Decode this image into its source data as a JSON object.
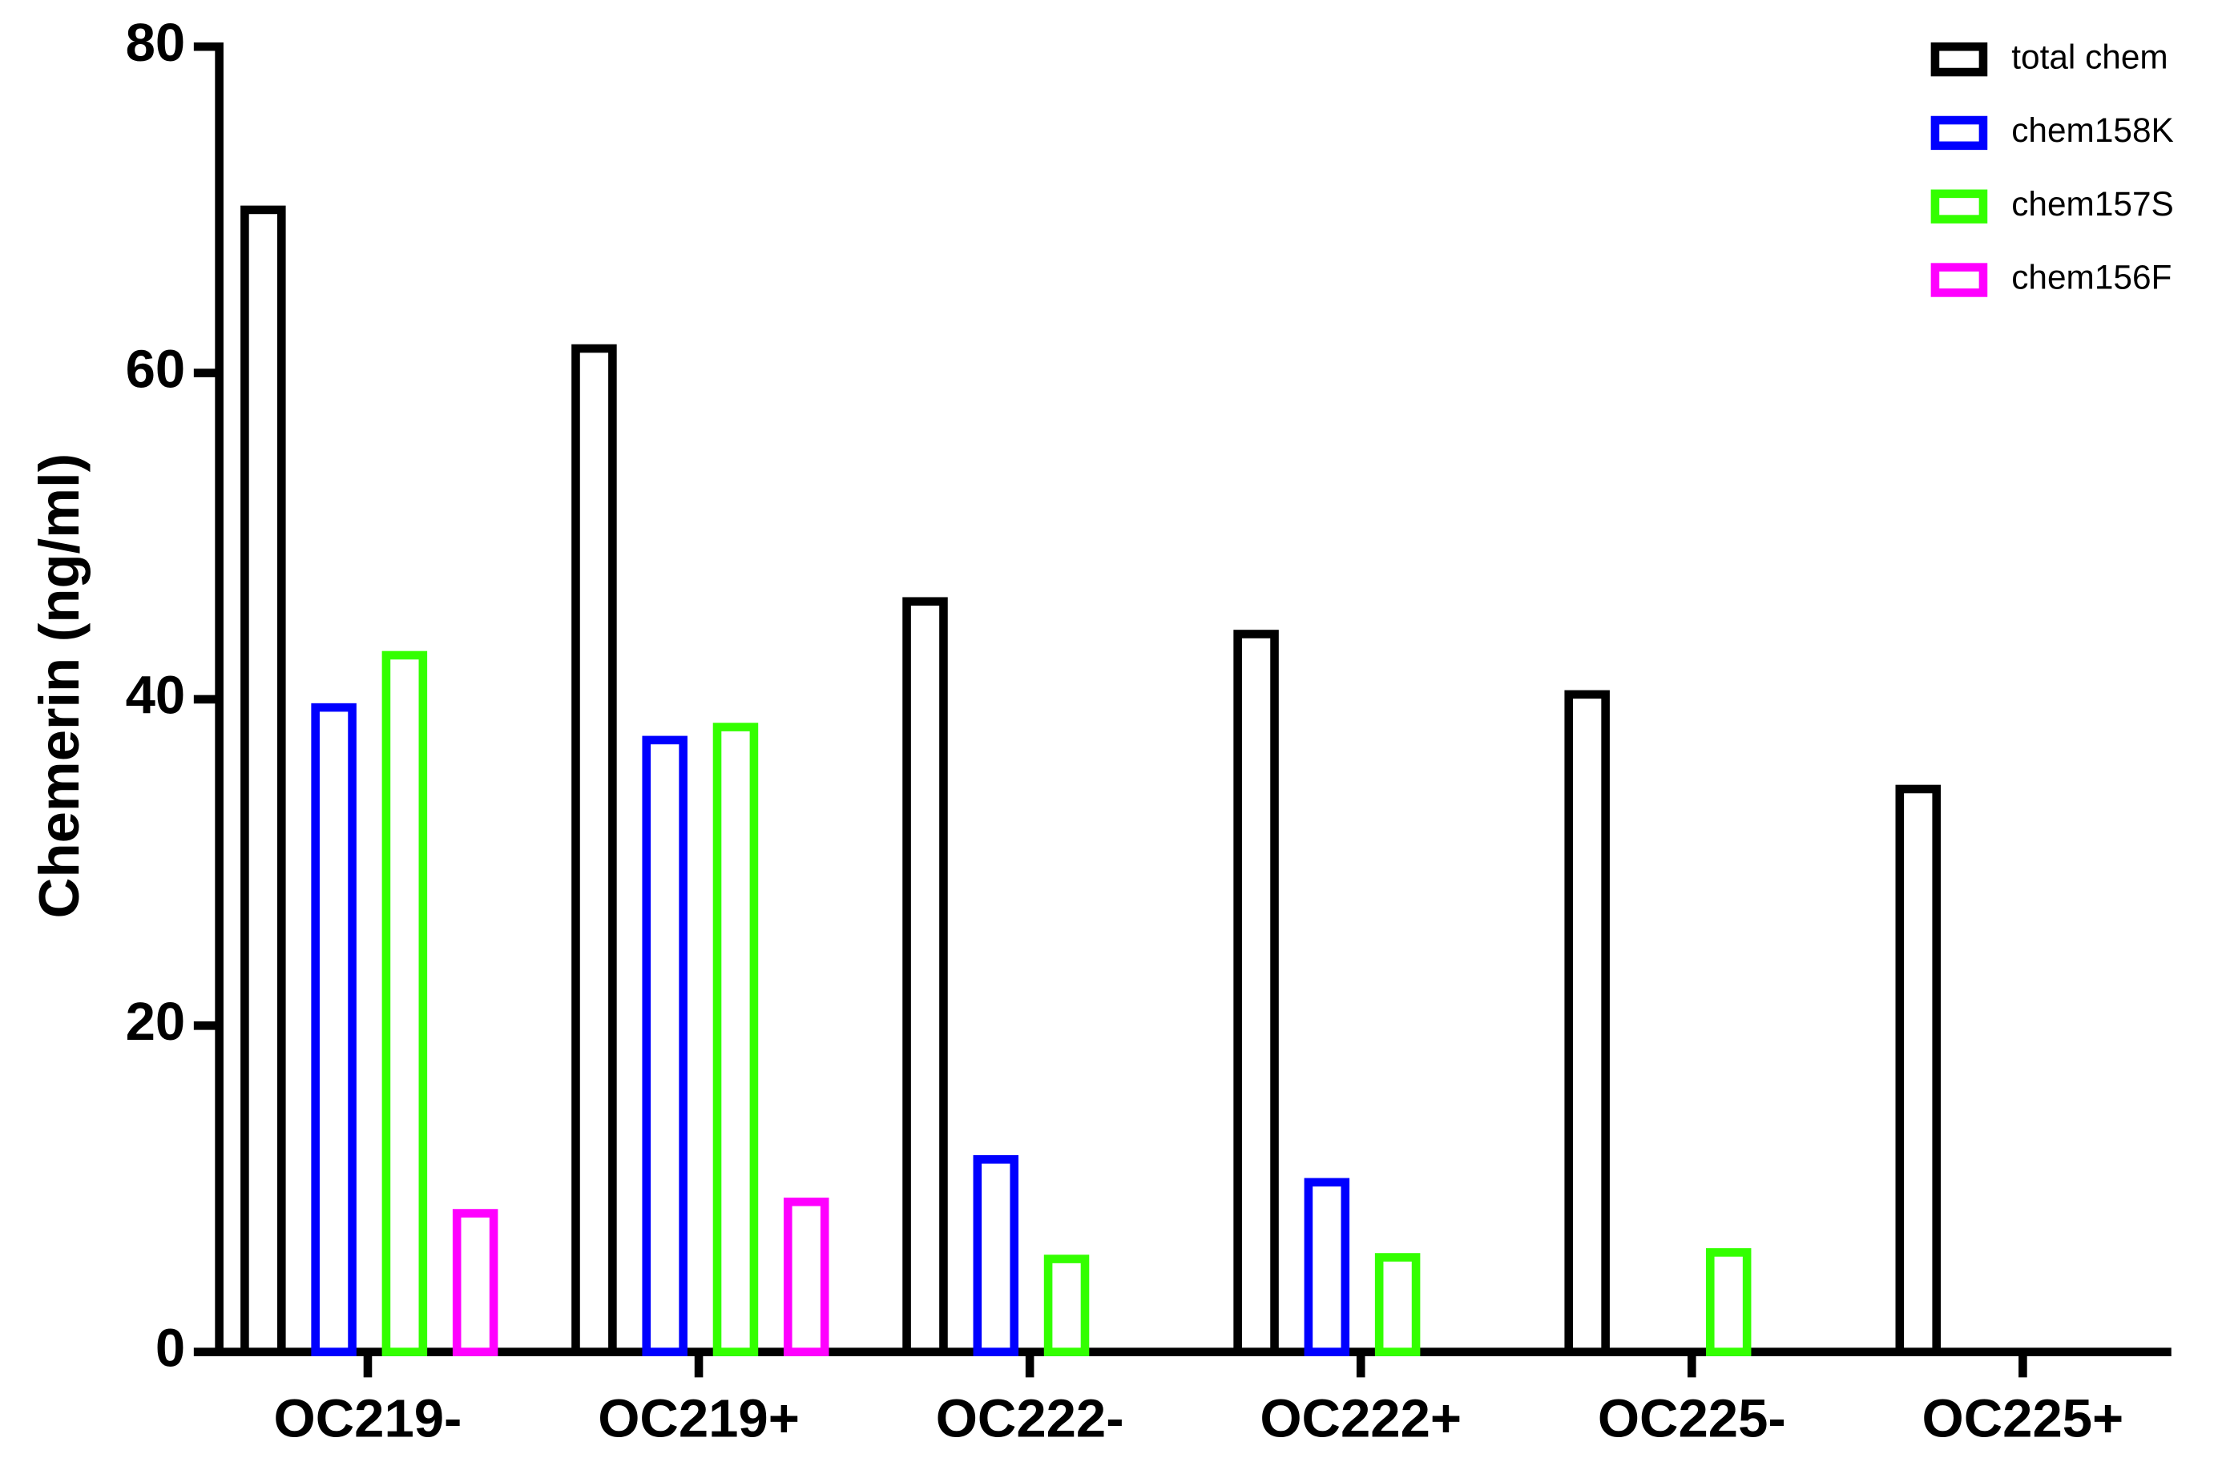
{
  "chart_data": {
    "type": "bar",
    "y_label": "Chemerin (ng/ml)",
    "categories": [
      "OC219-",
      "OC219+",
      "OC222-",
      "OC222+",
      "OC225-",
      "OC225+"
    ],
    "series": [
      {
        "name": "total chem",
        "color": "#000000",
        "values": [
          70,
          61.5,
          46,
          44,
          40.3,
          34.5
        ]
      },
      {
        "name": "chem158K",
        "color": "#0000ff",
        "values": [
          39.5,
          37.5,
          11.8,
          10.4,
          null,
          null
        ]
      },
      {
        "name": "chem157S",
        "color": "#33ff00",
        "values": [
          42.7,
          38.3,
          5.7,
          5.8,
          6.1,
          null
        ]
      },
      {
        "name": "chem156F",
        "color": "#ff00ff",
        "values": [
          8.5,
          9.2,
          null,
          null,
          null,
          null
        ]
      }
    ],
    "ylim": [
      0,
      80
    ],
    "yticks": [
      0,
      20,
      40,
      60,
      80
    ],
    "legend": "top-right"
  }
}
